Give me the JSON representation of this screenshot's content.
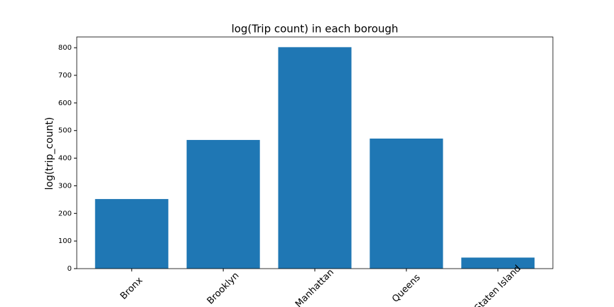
{
  "chart_data": {
    "type": "bar",
    "title": "log(Trip count) in each borough",
    "y_label": "log(trip_count)",
    "categories": [
      "Bronx",
      "Brooklyn",
      "Manhattan",
      "Queens",
      "Staten Island"
    ],
    "values": [
      252,
      466,
      802,
      471,
      40
    ],
    "color": "#1f77b4",
    "ylim": [
      0,
      839
    ],
    "yticks": [
      0,
      100,
      200,
      300,
      400,
      500,
      600,
      700,
      800
    ],
    "grid": false
  }
}
